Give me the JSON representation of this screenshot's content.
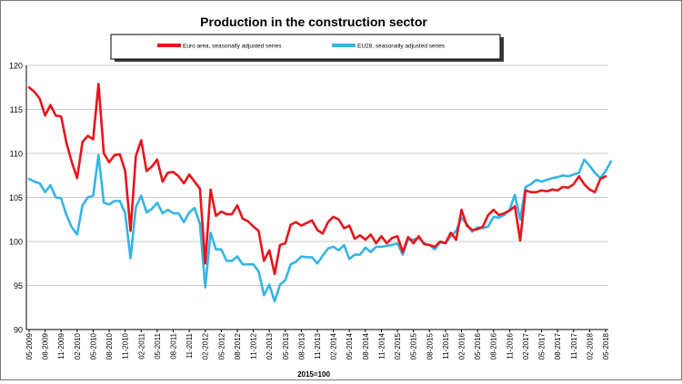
{
  "chart_data": {
    "type": "line",
    "title": "Production in the construction sector",
    "xlabel": "2015=100",
    "ylabel": "",
    "ylim": [
      90,
      120
    ],
    "yticks": [
      90,
      95,
      100,
      105,
      110,
      115,
      120
    ],
    "grid": true,
    "legend_position": "top",
    "x_start": "05-2009",
    "x_end": "05-2018",
    "tick_labels": [
      "05-2009",
      "08-2009",
      "11-2009",
      "02-2010",
      "05-2010",
      "08-2010",
      "11-2010",
      "02-2011",
      "05-2011",
      "08-2011",
      "11-2011",
      "02-2012",
      "05-2012",
      "08-2012",
      "11-2012",
      "02-2013",
      "05-2013",
      "08-2013",
      "11-2013",
      "02-2014",
      "05-2014",
      "08-2014",
      "11-2014",
      "02-2015",
      "05-2015",
      "08-2015",
      "11-2015",
      "02-2016",
      "05-2016",
      "08-2016",
      "11-2016",
      "02-2017",
      "05-2017",
      "08-2017",
      "11-2017",
      "02-2018",
      "05-2018"
    ],
    "series": [
      {
        "name": "Euro area, seasonally adjusted series",
        "color": "#e8141b",
        "values": [
          117.5,
          117.0,
          116.2,
          114.3,
          115.5,
          114.3,
          114.2,
          111.2,
          109.0,
          107.2,
          111.3,
          112.0,
          111.6,
          117.9,
          110.0,
          109.0,
          109.8,
          109.9,
          108.0,
          101.2,
          109.7,
          111.5,
          108.0,
          108.5,
          109.3,
          106.8,
          107.8,
          107.9,
          107.4,
          106.6,
          107.6,
          106.8,
          106.0,
          97.5,
          105.9,
          102.9,
          103.4,
          103.1,
          103.1,
          104.1,
          102.6,
          102.3,
          101.7,
          101.2,
          97.8,
          99.0,
          96.3,
          99.6,
          99.8,
          101.9,
          102.2,
          101.8,
          102.1,
          102.4,
          101.3,
          100.9,
          102.2,
          102.8,
          102.5,
          101.5,
          101.8,
          100.3,
          100.7,
          100.2,
          100.8,
          99.8,
          100.6,
          99.8,
          100.4,
          100.6,
          98.8,
          100.5,
          99.8,
          100.6,
          99.7,
          99.6,
          99.4,
          100.0,
          99.8,
          101.0,
          100.2,
          103.6,
          101.8,
          101.3,
          101.4,
          101.7,
          103.0,
          103.6,
          103.0,
          103.2,
          103.5,
          104.0,
          100.1,
          105.8,
          105.6,
          105.6,
          105.8,
          105.7,
          105.9,
          105.8,
          106.2,
          106.1,
          106.5,
          107.4,
          106.5,
          105.9,
          105.6,
          107.1,
          107.4
        ]
      },
      {
        "name": "EU28, seasonally adjusted series",
        "color": "#36b4e4",
        "values": [
          107.1,
          106.8,
          106.6,
          105.6,
          106.4,
          105.0,
          104.9,
          103.0,
          101.6,
          100.8,
          104.1,
          105.0,
          105.2,
          109.8,
          104.4,
          104.2,
          104.6,
          104.6,
          103.2,
          98.1,
          103.9,
          105.2,
          103.3,
          103.7,
          104.4,
          103.2,
          103.6,
          103.2,
          103.2,
          102.2,
          103.3,
          103.8,
          102.0,
          94.8,
          101.0,
          99.1,
          99.1,
          97.8,
          97.8,
          98.3,
          97.4,
          97.4,
          97.4,
          96.6,
          93.9,
          95.1,
          93.2,
          95.1,
          95.6,
          97.4,
          97.7,
          98.3,
          98.2,
          98.2,
          97.5,
          98.4,
          99.2,
          99.4,
          99.0,
          99.6,
          98.0,
          98.5,
          98.5,
          99.3,
          98.8,
          99.4,
          99.4,
          99.5,
          99.6,
          99.8,
          98.5,
          100.3,
          100.2,
          100.4,
          99.8,
          99.6,
          99.1,
          99.9,
          99.8,
          100.6,
          101.2,
          102.7,
          102.0,
          101.1,
          101.6,
          101.5,
          101.7,
          102.8,
          102.7,
          103.0,
          103.6,
          105.3,
          102.5,
          106.2,
          106.5,
          107.0,
          106.8,
          107.0,
          107.2,
          107.3,
          107.5,
          107.4,
          107.6,
          107.8,
          109.3,
          108.6,
          107.8,
          107.2,
          108.0,
          109.1
        ]
      }
    ]
  }
}
